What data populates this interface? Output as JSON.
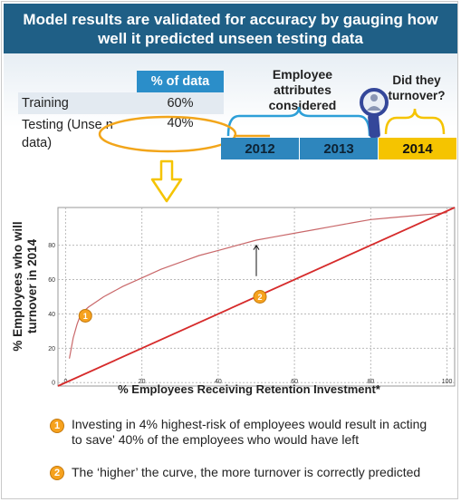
{
  "title": "Model results are validated for accuracy by gauging how well it predicted unseen testing data",
  "split_table": {
    "header": "% of data",
    "rows": [
      {
        "label": "Training",
        "value": "60%"
      },
      {
        "label": "Testing (Unseen data)",
        "label_line1": "Testing (Unse",
        "label_line1b": "n",
        "label_line2": "data)",
        "value": "40%"
      }
    ]
  },
  "timeline": {
    "attributes_label": "Employee attributes considered",
    "attributes_line1": "Employee",
    "attributes_line2": "attributes",
    "attributes_line3": "considered",
    "turnover_label": "Did they turnover?",
    "turnover_line1": "Did they",
    "turnover_line2": "turnover?",
    "years": [
      "2012",
      "2013",
      "2014"
    ]
  },
  "chart_data": {
    "type": "line",
    "xlabel": "% Employees Receiving Retention Investment*",
    "ylabel": "% Employees who will turnover in 2014",
    "ylabel_line1": "% Employees who will",
    "ylabel_line2": "turnover in 2014",
    "xlim": [
      -2,
      102
    ],
    "ylim": [
      -2,
      102
    ],
    "x_ticks": [
      "0",
      "20",
      "40",
      "60",
      "80",
      "100"
    ],
    "y_ticks": [
      "0",
      "20",
      "40",
      "60",
      "80"
    ],
    "grid": true,
    "series": [
      {
        "color": "#c9686a",
        "x": [
          1,
          2,
          3,
          4,
          6,
          10,
          15,
          20,
          25,
          30,
          35,
          40,
          45,
          50,
          55,
          60,
          65,
          70,
          75,
          80,
          85,
          90,
          95,
          100
        ],
        "y": [
          14,
          26,
          34,
          40,
          44,
          50,
          56,
          61,
          66,
          70,
          74,
          77,
          80,
          83,
          85,
          87,
          89,
          91,
          93,
          95,
          96,
          97,
          98,
          99
        ]
      },
      {
        "color": "#d62b2b",
        "x": [
          -2,
          102
        ],
        "y": [
          -2,
          102
        ]
      }
    ],
    "markers": [
      {
        "label": "1",
        "x": 4,
        "y": 40
      },
      {
        "label": "2",
        "x": 50,
        "y": 50
      }
    ]
  },
  "notes": [
    {
      "num": "1",
      "text_line1": "Investing in 4% highest-risk of employees would result in acting",
      "text_line2": "to save' 40% of the employees who would have left"
    },
    {
      "num": "2",
      "text_line1": "The ‘higher’ the curve, the more turnover is correctly predicted"
    }
  ]
}
